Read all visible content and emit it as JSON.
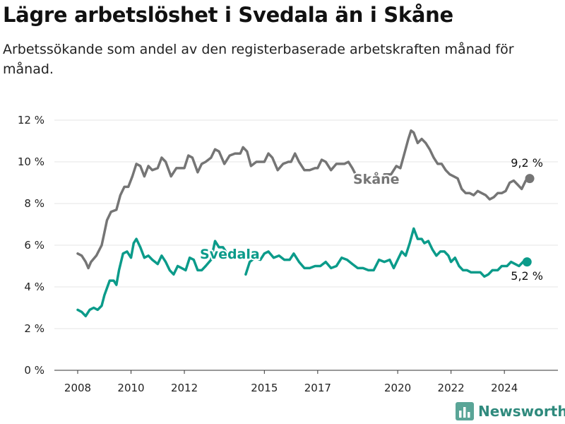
{
  "header": {
    "title": "Lägre arbetslöshet i Svedala än i Skåne",
    "subtitle": "Arbetssökande som andel av den registerbaserade arbetskraften månad för månad."
  },
  "brand": {
    "name": "Newsworthy",
    "icon": "bar-chart-logo-icon"
  },
  "colors": {
    "skane": "#757575",
    "svedala": "#0b9b8a",
    "grid": "#e6e6e6",
    "brand": "#2f8a7d"
  },
  "chart_data": {
    "type": "line",
    "ylim": [
      0,
      12
    ],
    "yticks": [
      0,
      2,
      4,
      6,
      8,
      10,
      12
    ],
    "ytick_labels": [
      "0 %",
      "2 %",
      "4 %",
      "6 %",
      "8 %",
      "10 %",
      "12 %"
    ],
    "xlim": [
      2007.85,
      2025.0
    ],
    "xticks": [
      2008,
      2010,
      2012,
      2015,
      2017,
      2020,
      2022,
      2024
    ],
    "xtick_labels": [
      "2008",
      "2010",
      "2012",
      "2015",
      "2017",
      "2020",
      "2022",
      "2024"
    ],
    "grid": true,
    "series": [
      {
        "name": "Skåne",
        "end_label": "9,2 %",
        "points": [
          [
            2008.0,
            5.6
          ],
          [
            2008.15,
            5.5
          ],
          [
            2008.3,
            5.2
          ],
          [
            2008.4,
            4.9
          ],
          [
            2008.5,
            5.2
          ],
          [
            2008.7,
            5.5
          ],
          [
            2008.9,
            6.0
          ],
          [
            2009.0,
            6.6
          ],
          [
            2009.1,
            7.2
          ],
          [
            2009.25,
            7.6
          ],
          [
            2009.45,
            7.7
          ],
          [
            2009.6,
            8.4
          ],
          [
            2009.75,
            8.8
          ],
          [
            2009.9,
            8.8
          ],
          [
            2010.05,
            9.3
          ],
          [
            2010.2,
            9.9
          ],
          [
            2010.35,
            9.8
          ],
          [
            2010.5,
            9.3
          ],
          [
            2010.65,
            9.8
          ],
          [
            2010.8,
            9.6
          ],
          [
            2011.0,
            9.7
          ],
          [
            2011.15,
            10.2
          ],
          [
            2011.3,
            10.0
          ],
          [
            2011.5,
            9.3
          ],
          [
            2011.7,
            9.7
          ],
          [
            2011.9,
            9.7
          ],
          [
            2012.0,
            9.7
          ],
          [
            2012.15,
            10.3
          ],
          [
            2012.3,
            10.2
          ],
          [
            2012.5,
            9.5
          ],
          [
            2012.65,
            9.9
          ],
          [
            2012.8,
            10.0
          ],
          [
            2013.0,
            10.2
          ],
          [
            2013.15,
            10.6
          ],
          [
            2013.3,
            10.5
          ],
          [
            2013.5,
            9.9
          ],
          [
            2013.7,
            10.3
          ],
          [
            2013.9,
            10.4
          ],
          [
            2014.1,
            10.4
          ],
          [
            2014.2,
            10.7
          ],
          [
            2014.35,
            10.5
          ],
          [
            2014.5,
            9.8
          ],
          [
            2014.7,
            10.0
          ],
          [
            2014.9,
            10.0
          ],
          [
            2015.0,
            10.0
          ],
          [
            2015.15,
            10.4
          ],
          [
            2015.3,
            10.2
          ],
          [
            2015.5,
            9.6
          ],
          [
            2015.7,
            9.9
          ],
          [
            2015.9,
            10.0
          ],
          [
            2016.0,
            10.0
          ],
          [
            2016.15,
            10.4
          ],
          [
            2016.3,
            10.0
          ],
          [
            2016.5,
            9.6
          ],
          [
            2016.7,
            9.6
          ],
          [
            2016.9,
            9.7
          ],
          [
            2017.0,
            9.7
          ],
          [
            2017.15,
            10.1
          ],
          [
            2017.3,
            10.0
          ],
          [
            2017.5,
            9.6
          ],
          [
            2017.7,
            9.9
          ],
          [
            2017.9,
            9.9
          ],
          [
            2018.0,
            9.9
          ],
          [
            2018.15,
            10.0
          ],
          [
            2018.3,
            9.7
          ],
          [
            2018.5,
            9.2
          ]
        ]
      },
      {
        "name": "Svedala",
        "end_label": "5,2 %",
        "points": [
          [
            2008.0,
            2.9
          ],
          [
            2008.15,
            2.8
          ],
          [
            2008.3,
            2.6
          ],
          [
            2008.45,
            2.9
          ],
          [
            2008.6,
            3.0
          ],
          [
            2008.75,
            2.9
          ],
          [
            2008.9,
            3.1
          ],
          [
            2009.0,
            3.6
          ],
          [
            2009.2,
            4.3
          ],
          [
            2009.35,
            4.3
          ],
          [
            2009.45,
            4.1
          ],
          [
            2009.55,
            4.8
          ],
          [
            2009.7,
            5.6
          ],
          [
            2009.85,
            5.7
          ],
          [
            2010.0,
            5.4
          ],
          [
            2010.1,
            6.1
          ],
          [
            2010.2,
            6.3
          ],
          [
            2010.35,
            5.9
          ],
          [
            2010.5,
            5.4
          ],
          [
            2010.65,
            5.5
          ],
          [
            2010.8,
            5.3
          ],
          [
            2011.0,
            5.1
          ],
          [
            2011.15,
            5.5
          ],
          [
            2011.3,
            5.2
          ],
          [
            2011.45,
            4.8
          ],
          [
            2011.6,
            4.6
          ],
          [
            2011.75,
            5.0
          ],
          [
            2011.9,
            4.9
          ],
          [
            2012.05,
            4.8
          ],
          [
            2012.2,
            5.4
          ],
          [
            2012.35,
            5.3
          ],
          [
            2012.5,
            4.8
          ],
          [
            2012.65,
            4.8
          ],
          [
            2012.8,
            5.0
          ],
          [
            2013.0,
            5.3
          ],
          [
            2013.15,
            6.2
          ],
          [
            2013.3,
            5.9
          ],
          [
            2013.45,
            5.9
          ],
          [
            2013.6,
            5.6
          ]
        ]
      }
    ],
    "svedala_late": [
      [
        2014.3,
        4.6
      ],
      [
        2014.45,
        5.2
      ],
      [
        2014.65,
        5.4
      ],
      [
        2014.85,
        5.3
      ],
      [
        2015.0,
        5.6
      ],
      [
        2015.15,
        5.7
      ],
      [
        2015.35,
        5.4
      ],
      [
        2015.55,
        5.5
      ],
      [
        2015.75,
        5.3
      ],
      [
        2015.95,
        5.3
      ],
      [
        2016.1,
        5.6
      ],
      [
        2016.3,
        5.2
      ],
      [
        2016.5,
        4.9
      ],
      [
        2016.7,
        4.9
      ],
      [
        2016.9,
        5.0
      ],
      [
        2017.1,
        5.0
      ],
      [
        2017.3,
        5.2
      ],
      [
        2017.5,
        4.9
      ],
      [
        2017.7,
        5.0
      ],
      [
        2017.9,
        5.4
      ],
      [
        2018.1,
        5.3
      ],
      [
        2018.3,
        5.1
      ],
      [
        2018.5,
        4.9
      ],
      [
        2018.7,
        4.9
      ],
      [
        2018.9,
        4.8
      ],
      [
        2019.1,
        4.8
      ],
      [
        2019.3,
        5.3
      ],
      [
        2019.5,
        5.2
      ],
      [
        2019.7,
        5.3
      ],
      [
        2019.85,
        4.9
      ],
      [
        2020.0,
        5.3
      ],
      [
        2020.15,
        5.7
      ],
      [
        2020.3,
        5.5
      ],
      [
        2020.45,
        6.1
      ],
      [
        2020.6,
        6.8
      ],
      [
        2020.75,
        6.3
      ],
      [
        2020.9,
        6.3
      ],
      [
        2021.0,
        6.1
      ],
      [
        2021.15,
        6.2
      ],
      [
        2021.3,
        5.8
      ],
      [
        2021.45,
        5.5
      ],
      [
        2021.6,
        5.7
      ],
      [
        2021.75,
        5.7
      ],
      [
        2021.9,
        5.5
      ],
      [
        2022.0,
        5.2
      ],
      [
        2022.15,
        5.4
      ],
      [
        2022.3,
        5.0
      ],
      [
        2022.45,
        4.8
      ],
      [
        2022.6,
        4.8
      ],
      [
        2022.75,
        4.7
      ],
      [
        2022.9,
        4.7
      ],
      [
        2023.1,
        4.7
      ],
      [
        2023.25,
        4.5
      ],
      [
        2023.4,
        4.6
      ],
      [
        2023.55,
        4.8
      ],
      [
        2023.75,
        4.8
      ],
      [
        2023.9,
        5.0
      ],
      [
        2024.1,
        5.0
      ],
      [
        2024.25,
        5.2
      ],
      [
        2024.4,
        5.1
      ],
      [
        2024.55,
        5.0
      ],
      [
        2024.7,
        5.2
      ],
      [
        2024.85,
        5.2
      ]
    ],
    "skane_late": [
      [
        2019.5,
        9.4
      ],
      [
        2019.75,
        9.4
      ],
      [
        2019.95,
        9.8
      ],
      [
        2020.1,
        9.7
      ],
      [
        2020.25,
        10.4
      ],
      [
        2020.4,
        11.1
      ],
      [
        2020.5,
        11.5
      ],
      [
        2020.6,
        11.4
      ],
      [
        2020.75,
        10.9
      ],
      [
        2020.9,
        11.1
      ],
      [
        2021.05,
        10.9
      ],
      [
        2021.2,
        10.6
      ],
      [
        2021.35,
        10.2
      ],
      [
        2021.5,
        9.9
      ],
      [
        2021.65,
        9.9
      ],
      [
        2021.8,
        9.6
      ],
      [
        2021.95,
        9.4
      ],
      [
        2022.1,
        9.3
      ],
      [
        2022.25,
        9.2
      ],
      [
        2022.4,
        8.7
      ],
      [
        2022.55,
        8.5
      ],
      [
        2022.7,
        8.5
      ],
      [
        2022.85,
        8.4
      ],
      [
        2023.0,
        8.6
      ],
      [
        2023.15,
        8.5
      ],
      [
        2023.3,
        8.4
      ],
      [
        2023.45,
        8.2
      ],
      [
        2023.6,
        8.3
      ],
      [
        2023.75,
        8.5
      ],
      [
        2023.9,
        8.5
      ],
      [
        2024.05,
        8.6
      ],
      [
        2024.2,
        9.0
      ],
      [
        2024.35,
        9.1
      ],
      [
        2024.5,
        8.9
      ],
      [
        2024.65,
        8.7
      ],
      [
        2024.8,
        9.1
      ],
      [
        2024.95,
        9.2
      ]
    ],
    "annotations": [
      {
        "text": "Skåne",
        "series": "Skåne",
        "at": [
          2019.0,
          9.2
        ]
      },
      {
        "text": "Svedala",
        "series": "Svedala",
        "at": [
          2013.9,
          5.6
        ]
      }
    ]
  }
}
